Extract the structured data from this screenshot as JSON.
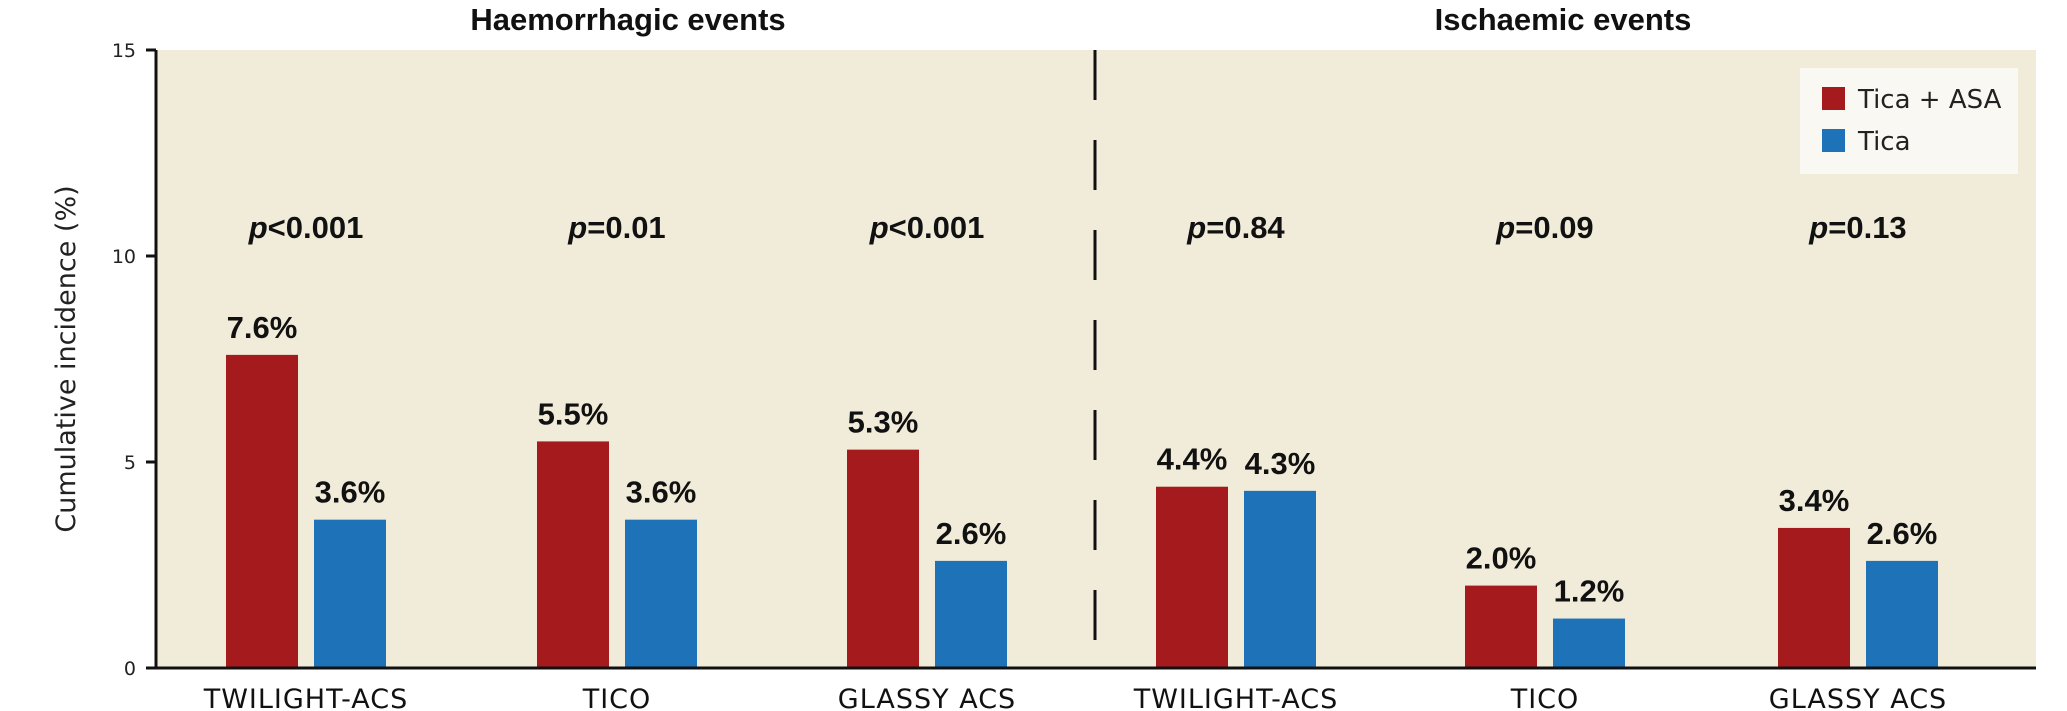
{
  "colors": {
    "plot_background": "#F1ECDA",
    "tica_asa": "#A51A1C",
    "tica": "#1E72B8",
    "axis": "#111111",
    "legend_background": "#FAF8F2"
  },
  "chart_data": {
    "type": "bar",
    "ylabel": "Cumulative incidence (%)",
    "ylim": [
      0,
      15
    ],
    "yticks": [
      0,
      5,
      10,
      15
    ],
    "legend_position": "top-right",
    "panels": [
      {
        "title": "Haemorrhagic events",
        "categories": [
          "TWILIGHT-ACS",
          "TICO",
          "GLASSY ACS"
        ]
      },
      {
        "title": "Ischaemic events",
        "categories": [
          "TWILIGHT-ACS",
          "TICO",
          "GLASSY ACS"
        ]
      }
    ],
    "series": [
      {
        "name": "Tica + ASA",
        "values": [
          7.6,
          5.5,
          5.3,
          4.4,
          2.0,
          3.4
        ],
        "labels": [
          "7.6%",
          "5.5%",
          "5.3%",
          "4.4%",
          "2.0%",
          "3.4%"
        ]
      },
      {
        "name": "Tica",
        "values": [
          3.6,
          3.6,
          2.6,
          4.3,
          1.2,
          2.6
        ],
        "labels": [
          "3.6%",
          "3.6%",
          "2.6%",
          "4.3%",
          "1.2%",
          "2.6%"
        ]
      }
    ],
    "p_values": [
      {
        "p": "p",
        "rest": "<0.001"
      },
      {
        "p": "p",
        "rest": "=0.01"
      },
      {
        "p": "p",
        "rest": "<0.001"
      },
      {
        "p": "p",
        "rest": "=0.84"
      },
      {
        "p": "p",
        "rest": "=0.09"
      },
      {
        "p": "p",
        "rest": "=0.13"
      }
    ]
  }
}
